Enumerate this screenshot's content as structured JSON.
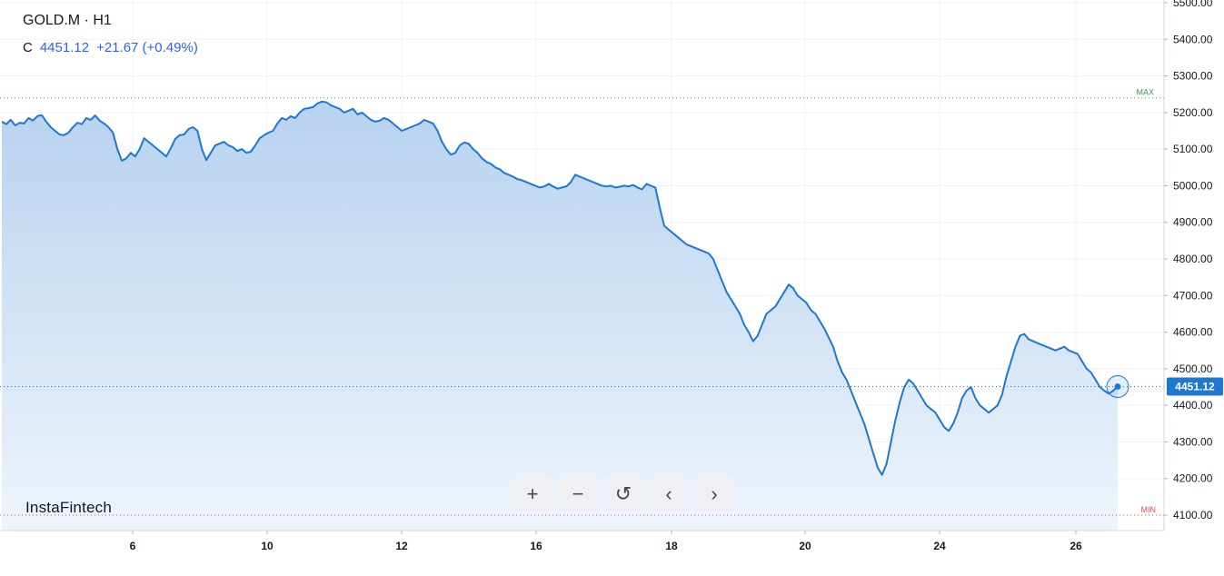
{
  "header": {
    "symbol": "GOLD.M · H1",
    "ohlc_prefix": "C",
    "last_value": "4451.12",
    "change": "+21.67 (+0.49%)"
  },
  "brand": "InstaFintech",
  "toolbar": {
    "zoom_in": "+",
    "zoom_out": "−",
    "reset": "↺",
    "prev": "‹",
    "next": "›"
  },
  "colors": {
    "line": "#1f77d3",
    "fill_top": "#b7d2f0",
    "fill_bottom": "#eef4fb",
    "price_label_bg": "#1f77d3",
    "max_color": "#2e9d58",
    "min_color": "#e05050"
  },
  "chart_data": {
    "type": "area",
    "y_ticks": [
      "5500.00",
      "5400.00",
      "5300.00",
      "5200.00",
      "5100.00",
      "5000.00",
      "4900.00",
      "4800.00",
      "4700.00",
      "4600.00",
      "4500.00",
      "4400.00",
      "4300.00",
      "4200.00",
      "4100.00"
    ],
    "x_ticks": [
      "6",
      "10",
      "12",
      "16",
      "18",
      "20",
      "24",
      "26"
    ],
    "ylim": [
      4100,
      5500
    ],
    "max_label": "MAX",
    "max_value": 5240,
    "min_label": "MIN",
    "min_value": 4100,
    "current_label": "4451.12",
    "current_value": 4451.12,
    "series": [
      {
        "values": [
          5175,
          5168,
          5180,
          5165,
          5172,
          5170,
          5185,
          5178,
          5190,
          5193,
          5175,
          5160,
          5150,
          5140,
          5138,
          5145,
          5160,
          5172,
          5168,
          5185,
          5180,
          5192,
          5178,
          5170,
          5160,
          5145,
          5100,
          5068,
          5075,
          5090,
          5080,
          5100,
          5130,
          5120,
          5110,
          5100,
          5090,
          5080,
          5102,
          5128,
          5138,
          5140,
          5155,
          5160,
          5150,
          5100,
          5070,
          5090,
          5110,
          5115,
          5120,
          5110,
          5105,
          5095,
          5100,
          5090,
          5093,
          5110,
          5130,
          5138,
          5145,
          5150,
          5170,
          5185,
          5180,
          5190,
          5185,
          5200,
          5210,
          5212,
          5215,
          5225,
          5230,
          5228,
          5220,
          5215,
          5210,
          5200,
          5205,
          5210,
          5195,
          5200,
          5190,
          5180,
          5175,
          5178,
          5185,
          5180,
          5170,
          5160,
          5150,
          5155,
          5160,
          5165,
          5170,
          5180,
          5175,
          5170,
          5150,
          5120,
          5100,
          5085,
          5090,
          5110,
          5118,
          5115,
          5100,
          5090,
          5075,
          5065,
          5060,
          5050,
          5045,
          5035,
          5030,
          5025,
          5018,
          5015,
          5010,
          5005,
          5000,
          4995,
          4998,
          5005,
          4998,
          4992,
          4995,
          4998,
          5010,
          5030,
          5025,
          5020,
          5015,
          5010,
          5005,
          5000,
          4998,
          5000,
          4995,
          4997,
          5000,
          4998,
          5002,
          4995,
          4990,
          5005,
          5000,
          4995,
          4940,
          4890,
          4880,
          4870,
          4860,
          4850,
          4840,
          4835,
          4830,
          4825,
          4820,
          4815,
          4800,
          4770,
          4740,
          4710,
          4690,
          4670,
          4650,
          4620,
          4600,
          4575,
          4590,
          4620,
          4650,
          4660,
          4670,
          4690,
          4710,
          4730,
          4720,
          4700,
          4690,
          4680,
          4660,
          4650,
          4630,
          4610,
          4585,
          4560,
          4520,
          4490,
          4470,
          4440,
          4410,
          4380,
          4350,
          4310,
          4270,
          4230,
          4210,
          4240,
          4300,
          4360,
          4410,
          4450,
          4470,
          4460,
          4440,
          4420,
          4400,
          4390,
          4380,
          4360,
          4340,
          4330,
          4350,
          4380,
          4420,
          4440,
          4450,
          4420,
          4400,
          4390,
          4380,
          4390,
          4400,
          4430,
          4480,
          4520,
          4560,
          4590,
          4595,
          4580,
          4575,
          4570,
          4565,
          4560,
          4555,
          4550,
          4555,
          4560,
          4550,
          4545,
          4540,
          4520,
          4500,
          4490,
          4470,
          4450,
          4440,
          4432,
          4440,
          4451.12
        ]
      }
    ]
  }
}
